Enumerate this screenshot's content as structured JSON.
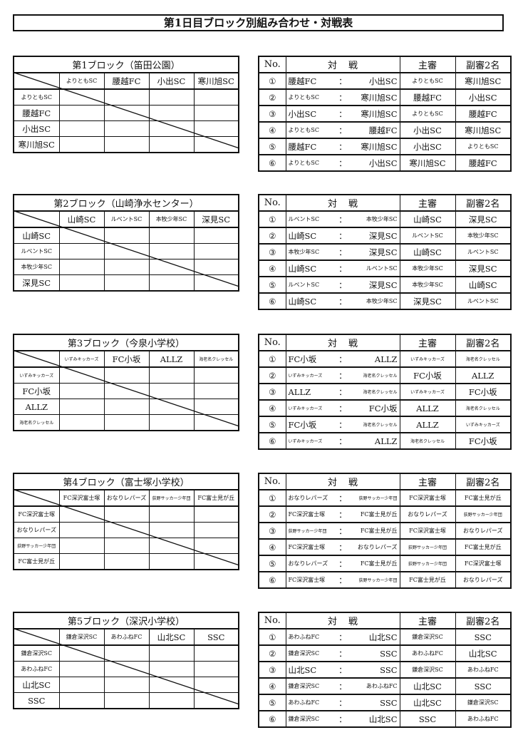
{
  "title": "第1日目ブロック別組み合わせ・対戦表",
  "headers": {
    "no": "No.",
    "match_a": "対",
    "match_b": "戦",
    "referee": "主審",
    "sub_referees": "副審2名",
    "colon": "："
  },
  "blocks": [
    {
      "name": "第1ブロック（笛田公園）",
      "teams": [
        "よりともSC",
        "腰越FC",
        "小出SC",
        "寒川旭SC"
      ],
      "matches": [
        [
          "①",
          "腰越FC",
          "小出SC",
          "よりともSC",
          "寒川旭SC"
        ],
        [
          "②",
          "よりともSC",
          "寒川旭SC",
          "腰越FC",
          "小出SC"
        ],
        [
          "③",
          "小出SC",
          "寒川旭SC",
          "よりともSC",
          "腰越FC"
        ],
        [
          "④",
          "よりともSC",
          "腰越FC",
          "小出SC",
          "寒川旭SC"
        ],
        [
          "⑤",
          "腰越FC",
          "寒川旭SC",
          "小出SC",
          "よりともSC"
        ],
        [
          "⑥",
          "よりともSC",
          "小出SC",
          "寒川旭SC",
          "腰越FC"
        ]
      ]
    },
    {
      "name": "第2ブロック（山崎浄水センター）",
      "teams": [
        "山崎SC",
        "ルベントSC",
        "本牧少年SC",
        "深見SC"
      ],
      "matches": [
        [
          "①",
          "ルベントSC",
          "本牧少年SC",
          "山崎SC",
          "深見SC"
        ],
        [
          "②",
          "山崎SC",
          "深見SC",
          "ルベントSC",
          "本牧少年SC"
        ],
        [
          "③",
          "本牧少年SC",
          "深見SC",
          "山崎SC",
          "ルベントSC"
        ],
        [
          "④",
          "山崎SC",
          "ルベントSC",
          "本牧少年SC",
          "深見SC"
        ],
        [
          "⑤",
          "ルベントSC",
          "深見SC",
          "本牧少年SC",
          "山崎SC"
        ],
        [
          "⑥",
          "山崎SC",
          "本牧少年SC",
          "深見SC",
          "ルベントSC"
        ]
      ]
    },
    {
      "name": "第3ブロック（今泉小学校）",
      "teams": [
        "いずみキッカーズ",
        "FC小坂",
        "ALLZ",
        "海老名クレッセル"
      ],
      "matches": [
        [
          "①",
          "FC小坂",
          "ALLZ",
          "いずみキッカーズ",
          "海老名クレッセル"
        ],
        [
          "②",
          "いずみキッカーズ",
          "海老名クレッセル",
          "FC小坂",
          "ALLZ"
        ],
        [
          "③",
          "ALLZ",
          "海老名クレッセル",
          "いずみキッカーズ",
          "FC小坂"
        ],
        [
          "④",
          "いずみキッカーズ",
          "FC小坂",
          "ALLZ",
          "海老名クレッセル"
        ],
        [
          "⑤",
          "FC小坂",
          "海老名クレッセル",
          "ALLZ",
          "いずみキッカーズ"
        ],
        [
          "⑥",
          "いずみキッカーズ",
          "ALLZ",
          "海老名クレッセル",
          "FC小坂"
        ]
      ]
    },
    {
      "name": "第4ブロック（富士塚小学校）",
      "teams": [
        "FC深沢富士塚",
        "おなりレパーズ",
        "荻野サッカー少年団",
        "FC富士見が丘"
      ],
      "matches": [
        [
          "①",
          "おなりレパーズ",
          "荻野サッカー少年団",
          "FC深沢富士塚",
          "FC富士見が丘"
        ],
        [
          "②",
          "FC深沢富士塚",
          "FC富士見が丘",
          "おなりレパーズ",
          "荻野サッカー少年団"
        ],
        [
          "③",
          "荻野サッカー少年団",
          "FC富士見が丘",
          "FC深沢富士塚",
          "おなりレパーズ"
        ],
        [
          "④",
          "FC深沢富士塚",
          "おなりレパーズ",
          "荻野サッカー少年団",
          "FC富士見が丘"
        ],
        [
          "⑤",
          "おなりレパーズ",
          "FC富士見が丘",
          "荻野サッカー少年団",
          "FC深沢富士塚"
        ],
        [
          "⑥",
          "FC深沢富士塚",
          "荻野サッカー少年団",
          "FC富士見が丘",
          "おなりレパーズ"
        ]
      ]
    },
    {
      "name": "第5ブロック（深沢小学校）",
      "teams": [
        "鎌倉深沢SC",
        "あわふねFC",
        "山北SC",
        "SSC"
      ],
      "matches": [
        [
          "①",
          "あわふねFC",
          "山北SC",
          "鎌倉深沢SC",
          "SSC"
        ],
        [
          "②",
          "鎌倉深沢SC",
          "SSC",
          "あわふねFC",
          "山北SC"
        ],
        [
          "③",
          "山北SC",
          "SSC",
          "鎌倉深沢SC",
          "あわふねFC"
        ],
        [
          "④",
          "鎌倉深沢SC",
          "あわふねFC",
          "山北SC",
          "SSC"
        ],
        [
          "⑤",
          "あわふねFC",
          "SSC",
          "山北SC",
          "鎌倉深沢SC"
        ],
        [
          "⑥",
          "鎌倉深沢SC",
          "山北SC",
          "SSC",
          "あわふねFC"
        ]
      ]
    }
  ]
}
